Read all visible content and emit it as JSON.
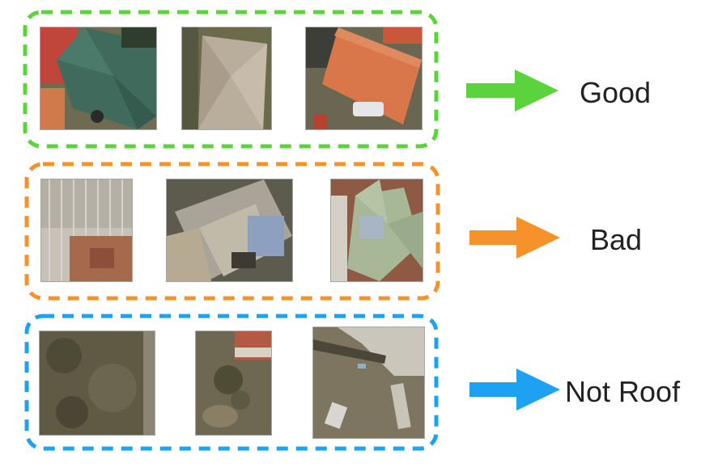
{
  "colors": {
    "good": "#5ad33c",
    "bad": "#f7922a",
    "not_roof": "#1fa1f2"
  },
  "rows": [
    {
      "id": "good",
      "label": "Good",
      "tiles": [
        {
          "description": "green hip roof aerial patch"
        },
        {
          "description": "grey hip roof aerial patch"
        },
        {
          "description": "orange gable roof aerial patch"
        }
      ]
    },
    {
      "id": "bad",
      "label": "Bad",
      "tiles": [
        {
          "description": "rusted corrugated roof patch"
        },
        {
          "description": "damaged mixed metal roof patch"
        },
        {
          "description": "patched roof with blue tarp patch"
        }
      ]
    },
    {
      "id": "not_roof",
      "label": "Not Roof",
      "tiles": [
        {
          "description": "vegetation ground patch"
        },
        {
          "description": "yard with small roof corner patch"
        },
        {
          "description": "debris on ground patch"
        }
      ]
    }
  ]
}
